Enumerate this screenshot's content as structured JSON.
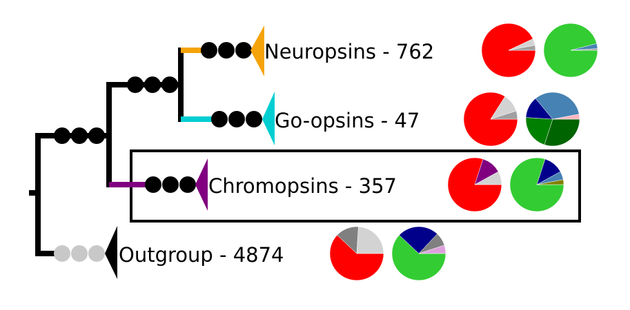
{
  "clades": [
    {
      "label": "Neuropsins - 762",
      "color": "#f5a30a",
      "pies": [
        [
          {
            "color": "#ff0000",
            "value": 93
          },
          {
            "color": "#d3d3d3",
            "value": 4
          },
          {
            "color": "#a0a0a0",
            "value": 3
          }
        ],
        [
          {
            "color": "#33cc33",
            "value": 96
          },
          {
            "color": "#4682b4",
            "value": 3
          },
          {
            "color": "#a0a0a0",
            "value": 1
          }
        ]
      ]
    },
    {
      "label": "Go-opsins - 47",
      "color": "#00ced1",
      "pies": [
        [
          {
            "color": "#ff0000",
            "value": 84
          },
          {
            "color": "#d3d3d3",
            "value": 11
          },
          {
            "color": "#a0a0a0",
            "value": 5
          }
        ],
        [
          {
            "color": "#006400",
            "value": 30
          },
          {
            "color": "#008000",
            "value": 21
          },
          {
            "color": "#00008b",
            "value": 13
          },
          {
            "color": "#4682b4",
            "value": 33
          },
          {
            "color": "#ffb6c1",
            "value": 3
          }
        ]
      ]
    },
    {
      "label": "Chromopsins - 357",
      "color": "#800080",
      "pies": [
        [
          {
            "color": "#ff0000",
            "value": 80
          },
          {
            "color": "#800080",
            "value": 12
          },
          {
            "color": "#d3d3d3",
            "value": 8
          }
        ],
        [
          {
            "color": "#33cc33",
            "value": 80
          },
          {
            "color": "#00008b",
            "value": 12
          },
          {
            "color": "#4682b4",
            "value": 5
          },
          {
            "color": "#808000",
            "value": 3
          }
        ]
      ]
    },
    {
      "label": "Outgroup - 4874",
      "color": "#000000",
      "pies": [
        [
          {
            "color": "#ff0000",
            "value": 62
          },
          {
            "color": "#808080",
            "value": 14
          },
          {
            "color": "#d3d3d3",
            "value": 24
          }
        ],
        [
          {
            "color": "#33cc33",
            "value": 62
          },
          {
            "color": "#00008b",
            "value": 25
          },
          {
            "color": "#808080",
            "value": 8
          },
          {
            "color": "#dda0dd",
            "value": 5
          }
        ]
      ]
    }
  ]
}
